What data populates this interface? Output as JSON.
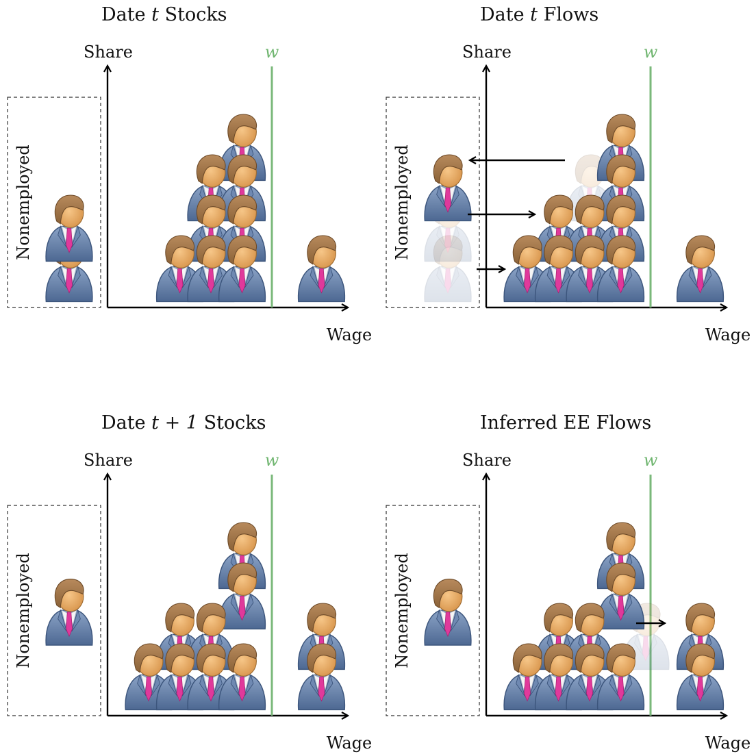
{
  "colors": {
    "wage_line": "#7ab87a",
    "suit": "#5e7aa6",
    "suit_dark": "#3f5b86",
    "skin": "#e8aa62",
    "hair": "#9c7348",
    "tie": "#e0399b"
  },
  "icon": "person-in-suit-icon",
  "panels": [
    {
      "title_pre": "Date ",
      "title_var": "t",
      "title_post": " Stocks",
      "ylabel": "Share",
      "xlabel": "Wage",
      "line_label": "w",
      "box_label": "Nonemployed",
      "nonemployed": [
        {
          "s": 1,
          "g": false
        },
        {
          "s": 2,
          "g": false
        }
      ],
      "stacks": [
        {
          "col": 2,
          "levels": [
            1
          ]
        },
        {
          "col": 3,
          "levels": [
            1,
            2,
            3
          ]
        },
        {
          "col": 4,
          "levels": [
            1,
            2,
            3,
            4
          ]
        },
        {
          "col": 6,
          "levels": [
            1
          ]
        }
      ],
      "ghosts": [],
      "arrows": []
    },
    {
      "title_pre": "Date ",
      "title_var": "t",
      "title_post": " Flows",
      "ylabel": "Share",
      "xlabel": "Wage",
      "line_label": "w",
      "box_label": "Nonemployed",
      "nonemployed": [
        {
          "s": 1,
          "g": true
        },
        {
          "s": 2,
          "g": true
        },
        {
          "s": 3,
          "g": false
        }
      ],
      "stacks": [
        {
          "col": 1,
          "levels": [
            1
          ]
        },
        {
          "col": 2,
          "levels": [
            1,
            2
          ]
        },
        {
          "col": 3,
          "levels": [
            1,
            2
          ]
        },
        {
          "col": 4,
          "levels": [
            1,
            2,
            3,
            4
          ]
        },
        {
          "col": 6,
          "levels": [
            1
          ]
        }
      ],
      "ghosts": [
        {
          "col": 3,
          "s": 3
        }
      ],
      "arrows": [
        "exit",
        "hire-low",
        "hire-mid"
      ]
    },
    {
      "title_pre": "Date ",
      "title_var": "t + 1",
      "title_post": " Stocks",
      "ylabel": "Share",
      "xlabel": "Wage",
      "line_label": "w",
      "box_label": "Nonemployed",
      "nonemployed": [
        {
          "s": 2.6,
          "g": false
        }
      ],
      "stacks": [
        {
          "col": 1,
          "levels": [
            1
          ]
        },
        {
          "col": 2,
          "levels": [
            1,
            2
          ]
        },
        {
          "col": 3,
          "levels": [
            1,
            2
          ]
        },
        {
          "col": 4,
          "levels": [
            1,
            3,
            4
          ]
        },
        {
          "col": 6,
          "levels": [
            1,
            2
          ]
        }
      ],
      "ghosts": [],
      "arrows": []
    },
    {
      "title_pre": "Inferred EE Flows",
      "title_var": "",
      "title_post": "",
      "ylabel": "Share",
      "xlabel": "Wage",
      "line_label": "w",
      "box_label": "Nonemployed",
      "nonemployed": [
        {
          "s": 2.6,
          "g": false
        }
      ],
      "stacks": [
        {
          "col": 1,
          "levels": [
            1
          ]
        },
        {
          "col": 2,
          "levels": [
            1,
            2
          ]
        },
        {
          "col": 3,
          "levels": [
            1,
            2
          ]
        },
        {
          "col": 4,
          "levels": [
            1,
            3,
            4
          ]
        },
        {
          "col": 6,
          "levels": [
            1,
            2
          ]
        }
      ],
      "ghosts": [
        {
          "col": 4.8,
          "s": 2
        }
      ],
      "arrows": [
        "ee-move"
      ]
    }
  ]
}
